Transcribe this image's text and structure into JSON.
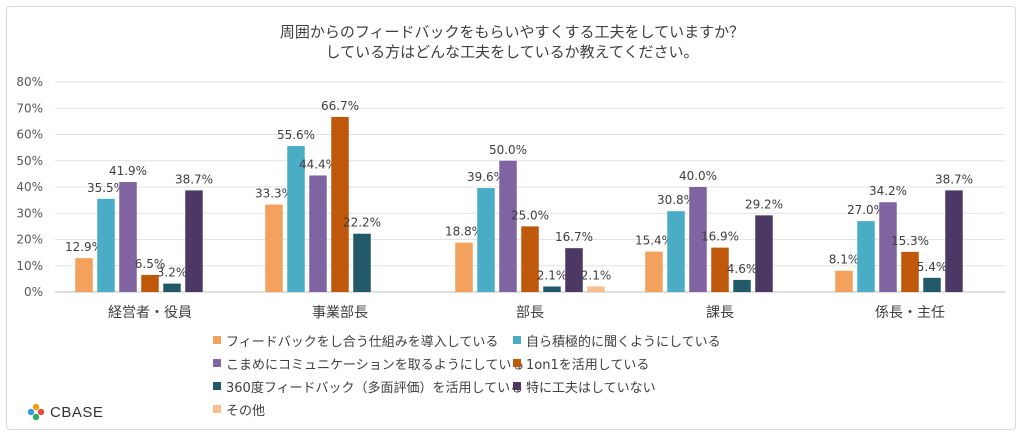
{
  "title_lines": [
    "周囲からのフィードバックをもらいやすくする工夫をしていますか？",
    "している方はどんな工夫をしているか教えてください。"
  ],
  "logo_text": "CBASE",
  "chart_data": {
    "type": "bar",
    "categories": [
      "経営者・役員",
      "事業部長",
      "部長",
      "課長",
      "係長・主任"
    ],
    "ylim": [
      0,
      80
    ],
    "yticks": [
      0,
      10,
      20,
      30,
      40,
      50,
      60,
      70,
      80
    ],
    "ytick_suffix": "%",
    "grid": true,
    "legend_position": "bottom",
    "series": [
      {
        "name": "フィードバックをし合う仕組みを導入している",
        "color": "#f4a15d",
        "values": [
          12.9,
          33.3,
          18.8,
          15.4,
          8.1
        ],
        "labels": [
          "12.9%",
          "33.3%",
          "18.8%",
          "15.4%",
          "8.1%"
        ]
      },
      {
        "name": "自ら積極的に聞くようにしている",
        "color": "#4bacc6",
        "values": [
          35.5,
          55.6,
          39.6,
          30.8,
          27.0
        ],
        "labels": [
          "35.5%",
          "55.6%",
          "39.6%",
          "30.8%",
          "27.0%"
        ]
      },
      {
        "name": "こまめにコミュニケーションを取るようにしている",
        "color": "#8064a2",
        "values": [
          41.9,
          44.4,
          50.0,
          40.0,
          34.2
        ],
        "labels": [
          "41.9%",
          "44.4%",
          "50.0%",
          "40.0%",
          "34.2%"
        ]
      },
      {
        "name": "1on1を活用している",
        "color": "#c0580b",
        "values": [
          6.5,
          66.7,
          25.0,
          16.9,
          15.3
        ],
        "labels": [
          "6.5%",
          "66.7%",
          "25.0%",
          "16.9%",
          "15.3%"
        ]
      },
      {
        "name": "360度フィードバック（多面評価）を活用している",
        "color": "#215968",
        "values": [
          3.2,
          22.2,
          2.1,
          4.6,
          5.4
        ],
        "labels": [
          "3.2%",
          "22.2%",
          "2.1%",
          "4.6%",
          "5.4%"
        ]
      },
      {
        "name": "特に工夫はしていない",
        "color": "#4b3865",
        "values": [
          38.7,
          0,
          16.7,
          29.2,
          38.7
        ],
        "labels": [
          "38.7%",
          "",
          "16.7%",
          "29.2%",
          "38.7%"
        ]
      },
      {
        "name": "その他",
        "color": "#fabf8f",
        "values": [
          0,
          0,
          2.1,
          0,
          0
        ],
        "labels": [
          "",
          "",
          "2.1%",
          "",
          ""
        ]
      }
    ]
  }
}
